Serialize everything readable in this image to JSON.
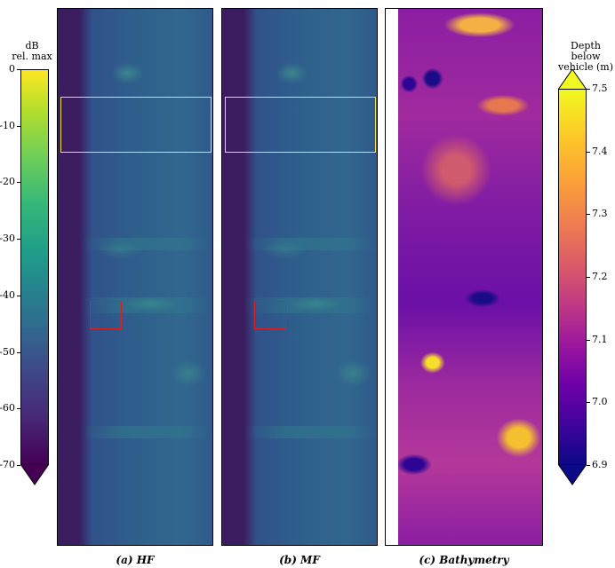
{
  "panels": [
    {
      "caption": "(a) HF"
    },
    {
      "caption": "(b) MF"
    },
    {
      "caption": "(c) Bathymetry"
    }
  ],
  "left_colorbar": {
    "label_line1": "dB",
    "label_line2": "rel. max",
    "ticks": [
      "0",
      "-10",
      "-20",
      "-30",
      "-40",
      "-50",
      "-60",
      "-70"
    ],
    "colors": [
      "#fde725",
      "#b5de2b",
      "#6ece58",
      "#35b779",
      "#1f9e89",
      "#26828e",
      "#31688e",
      "#3e4989",
      "#482878",
      "#440154"
    ]
  },
  "right_colorbar": {
    "label_line1": "Depth below",
    "label_line2": "vehicle (m)",
    "ticks": [
      "7.5",
      "7.4",
      "7.3",
      "7.2",
      "7.1",
      "7.0",
      "6.9"
    ],
    "colors": [
      "#f0f921",
      "#fdca26",
      "#fb9f3a",
      "#ed7953",
      "#d8576b",
      "#bd3786",
      "#9c179e",
      "#7201a8",
      "#46039f",
      "#0d0887"
    ]
  }
}
